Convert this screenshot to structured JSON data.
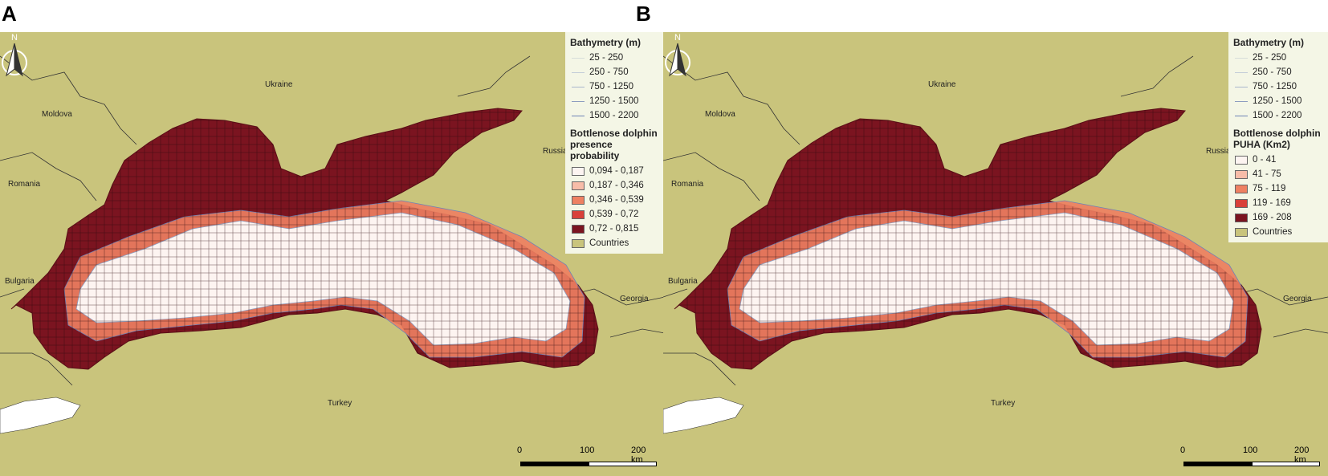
{
  "panels": [
    {
      "letter": "A",
      "legend": {
        "bathymetry_title": "Bathymetry (m)",
        "bathymetry": [
          "25 - 250",
          "250 - 750",
          "750 - 1250",
          "1250 - 1500",
          "1500 - 2200"
        ],
        "bathy_colors": [
          "#d7ddd9",
          "#c4cdd8",
          "#a9b6cc",
          "#8c9cc0",
          "#6f83b6"
        ],
        "class_title_line1": "Bottlenose dolphin",
        "class_title_line2": "presence probability",
        "classes": [
          "0,094 - 0,187",
          "0,187 - 0,346",
          "0,346 - 0,539",
          "0,539 - 0,72",
          "0,72 - 0,815"
        ],
        "class_colors": [
          "#fdf4f1",
          "#f7bca8",
          "#ee8062",
          "#d9403a",
          "#7b1420"
        ],
        "countries_label": "Countries",
        "countries_color": "#c9c47c"
      },
      "countries": [
        "Ukraine",
        "Moldova",
        "Romania",
        "Bulgaria",
        "Russia",
        "Georgia",
        "Turkey"
      ],
      "scalebar": [
        "0",
        "100",
        "200 km"
      ],
      "north": "N"
    },
    {
      "letter": "B",
      "legend": {
        "bathymetry_title": "Bathymetry (m)",
        "bathymetry": [
          "25 - 250",
          "250 - 750",
          "750 - 1250",
          "1250 - 1500",
          "1500 - 2200"
        ],
        "bathy_colors": [
          "#d7ddd9",
          "#c4cdd8",
          "#a9b6cc",
          "#8c9cc0",
          "#6f83b6"
        ],
        "class_title_line1": "Bottlenose dolphin",
        "class_title_line2": "PUHA (Km2)",
        "classes": [
          "0 - 41",
          "41 - 75",
          "75 - 119",
          "119 - 169",
          "169 - 208"
        ],
        "class_colors": [
          "#fdf4f1",
          "#f7bca8",
          "#ee8062",
          "#d9403a",
          "#7b1420"
        ],
        "countries_label": "Countries",
        "countries_color": "#c9c47c"
      },
      "countries": [
        "Ukraine",
        "Moldova",
        "Romania",
        "Bulgaria",
        "Russia",
        "Georgia",
        "Turkey"
      ],
      "scalebar": [
        "0",
        "100",
        "200 km"
      ],
      "north": "N"
    }
  ]
}
